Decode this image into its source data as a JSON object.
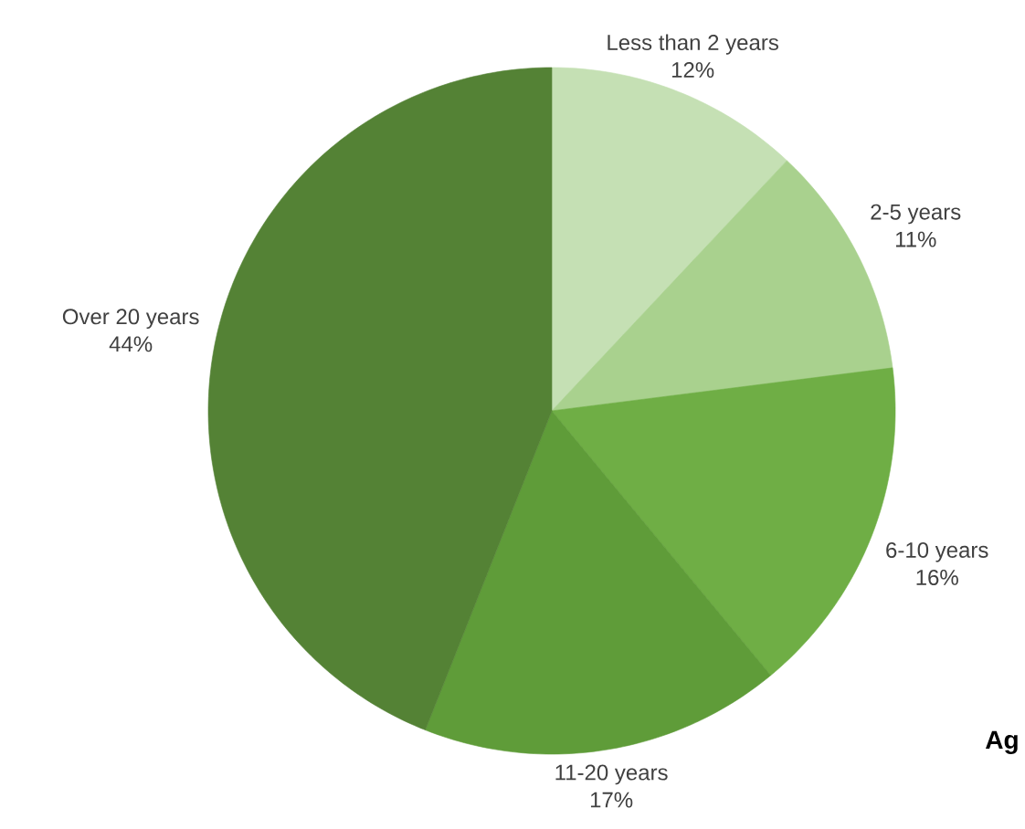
{
  "chart_data": {
    "type": "pie",
    "categories": [
      "Less than 2 years",
      "2-5 years",
      "6-10 years",
      "11-20 years",
      "Over 20 years"
    ],
    "values": [
      12,
      11,
      16,
      17,
      44
    ],
    "value_labels": [
      "12%",
      "11%",
      "16%",
      "17%",
      "44%"
    ],
    "colors": [
      "#c5e0b4",
      "#a9d18e",
      "#6fae45",
      "#5f9c39",
      "#548235"
    ],
    "annotations": [
      "Ag"
    ]
  }
}
